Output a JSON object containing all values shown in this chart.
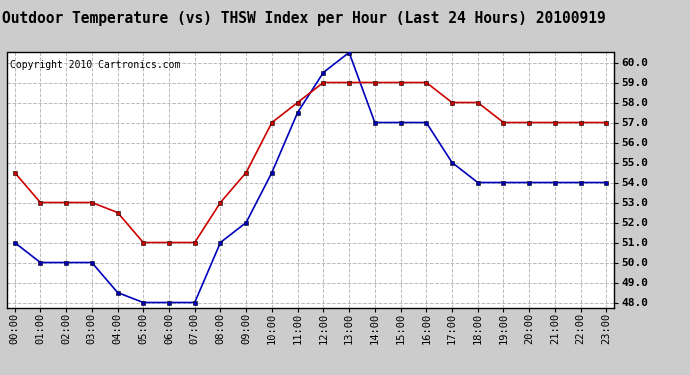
{
  "title": "Outdoor Temperature (vs) THSW Index per Hour (Last 24 Hours) 20100919",
  "copyright": "Copyright 2010 Cartronics.com",
  "hours": [
    "00:00",
    "01:00",
    "02:00",
    "03:00",
    "04:00",
    "05:00",
    "06:00",
    "07:00",
    "08:00",
    "09:00",
    "10:00",
    "11:00",
    "12:00",
    "13:00",
    "14:00",
    "15:00",
    "16:00",
    "17:00",
    "18:00",
    "19:00",
    "20:00",
    "21:00",
    "22:00",
    "23:00"
  ],
  "blue_data": [
    51.0,
    50.0,
    50.0,
    50.0,
    48.5,
    48.0,
    48.0,
    48.0,
    51.0,
    52.0,
    54.5,
    57.5,
    59.5,
    60.5,
    57.0,
    57.0,
    57.0,
    55.0,
    54.0,
    54.0,
    54.0,
    54.0,
    54.0,
    54.0
  ],
  "red_data": [
    54.5,
    53.0,
    53.0,
    53.0,
    52.5,
    51.0,
    51.0,
    51.0,
    53.0,
    54.5,
    57.0,
    58.0,
    59.0,
    59.0,
    59.0,
    59.0,
    59.0,
    58.0,
    58.0,
    57.0,
    57.0,
    57.0,
    57.0,
    57.0
  ],
  "blue_color": "#0000bb",
  "red_color": "#cc0000",
  "fig_bg_color": "#cccccc",
  "plot_bg_color": "#ffffff",
  "ylim": [
    47.75,
    60.5
  ],
  "yticks": [
    48.0,
    49.0,
    50.0,
    51.0,
    52.0,
    53.0,
    54.0,
    55.0,
    56.0,
    57.0,
    58.0,
    59.0,
    60.0
  ],
  "grid_color": "#bbbbbb",
  "title_fontsize": 10.5,
  "tick_fontsize": 7.5,
  "copyright_fontsize": 7,
  "line_width": 1.2,
  "marker_size": 3.5
}
